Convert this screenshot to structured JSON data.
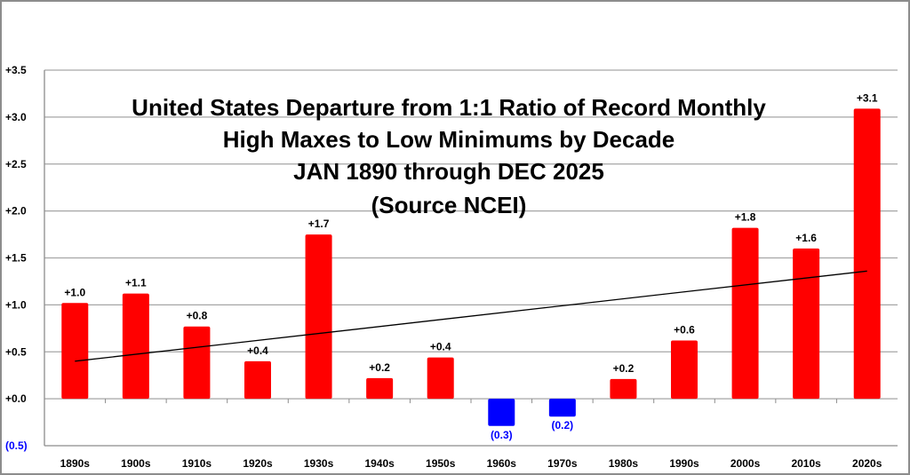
{
  "chart_data": {
    "type": "bar",
    "title_lines": [
      "United States Departure from 1:1 Ratio of Record Monthly",
      "High Maxes to Low Minimums by Decade",
      "JAN 1890 through DEC 2025",
      "(Source NCEI)"
    ],
    "xlabel": "",
    "ylabel": "",
    "ylim": [
      -0.5,
      3.5
    ],
    "yticks": [
      -0.5,
      0,
      0.5,
      1.0,
      1.5,
      2.0,
      2.5,
      3.0,
      3.5
    ],
    "ytick_labels": [
      "(0.5)",
      "+0.0",
      "+0.5",
      "+1.0",
      "+1.5",
      "+2.0",
      "+2.5",
      "+3.0",
      "+3.5"
    ],
    "grid": true,
    "categories": [
      "1890s",
      "1900s",
      "1910s",
      "1920s",
      "1930s",
      "1940s",
      "1950s",
      "1960s",
      "1970s",
      "1980s",
      "1990s",
      "2000s",
      "2010s",
      "2020s"
    ],
    "values": [
      1.02,
      1.12,
      0.77,
      0.4,
      1.75,
      0.22,
      0.44,
      -0.29,
      -0.19,
      0.21,
      0.62,
      1.82,
      1.6,
      3.09
    ],
    "data_labels": [
      "+1.0",
      "+1.1",
      "+0.8",
      "+0.4",
      "+1.7",
      "+0.2",
      "+0.4",
      "(0.3)",
      "(0.2)",
      "+0.2",
      "+0.6",
      "+1.8",
      "+1.6",
      "+3.1"
    ],
    "trendline": {
      "start": 0.4,
      "end": 1.36,
      "color": "#000000"
    },
    "colors": {
      "positive": "#ff0000",
      "negative": "#0000ff",
      "negative_label": "#0000ff",
      "grid": "#a6a6a6"
    }
  }
}
